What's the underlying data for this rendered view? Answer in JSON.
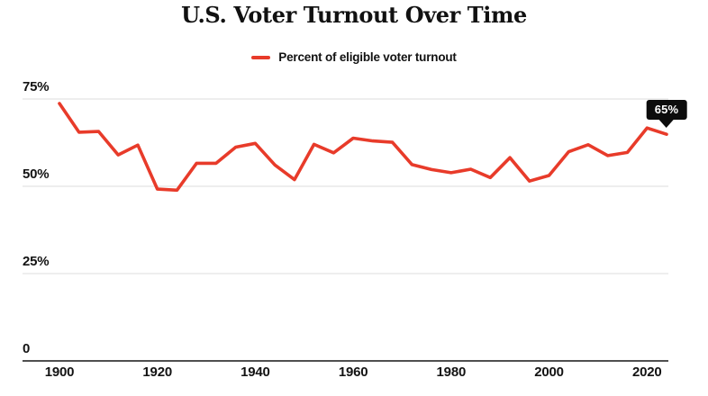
{
  "title": "U.S. Voter Turnout Over Time",
  "legend": {
    "label": "Percent of eligible voter turnout",
    "position": "top-center"
  },
  "annotation": {
    "label": "65%"
  },
  "colors": {
    "line": "#e83b2a",
    "grid": "#dcdcdc",
    "axis": "#161616",
    "text": "#131313",
    "title": "#111111",
    "tooltip_bg": "#0c0c0c",
    "tooltip_text": "#ffffff",
    "background": "#ffffff"
  },
  "chart_data": {
    "type": "line",
    "title": "U.S. Voter Turnout Over Time",
    "xlabel": "",
    "ylabel": "",
    "grid": "horizontal",
    "legend_position": "top-center",
    "xlim": [
      1900,
      2024
    ],
    "ylim": [
      0,
      78
    ],
    "y_ticks": [
      {
        "value": 0,
        "label": "0"
      },
      {
        "value": 25,
        "label": "25%"
      },
      {
        "value": 50,
        "label": "50%"
      },
      {
        "value": 75,
        "label": "75%"
      }
    ],
    "x_ticks": [
      {
        "value": 1900,
        "label": "1900"
      },
      {
        "value": 1920,
        "label": "1920"
      },
      {
        "value": 1940,
        "label": "1940"
      },
      {
        "value": 1960,
        "label": "1960"
      },
      {
        "value": 1980,
        "label": "1980"
      },
      {
        "value": 2000,
        "label": "2000"
      },
      {
        "value": 2020,
        "label": "2020"
      }
    ],
    "series": [
      {
        "name": "Percent of eligible voter turnout",
        "x": [
          1900,
          1904,
          1908,
          1912,
          1916,
          1920,
          1924,
          1928,
          1932,
          1936,
          1940,
          1944,
          1948,
          1952,
          1956,
          1960,
          1964,
          1968,
          1972,
          1976,
          1980,
          1984,
          1988,
          1992,
          1996,
          2000,
          2004,
          2008,
          2012,
          2016,
          2020,
          2024
        ],
        "values": [
          73.7,
          65.5,
          65.7,
          59.0,
          61.8,
          49.2,
          48.9,
          56.6,
          56.6,
          61.2,
          62.3,
          56.1,
          51.9,
          62.0,
          59.6,
          63.8,
          63.0,
          62.6,
          56.2,
          54.8,
          53.9,
          54.9,
          52.5,
          58.2,
          51.5,
          53.1,
          59.9,
          61.9,
          58.8,
          59.7,
          66.7,
          64.9
        ]
      }
    ],
    "last_point_label": "65%"
  }
}
